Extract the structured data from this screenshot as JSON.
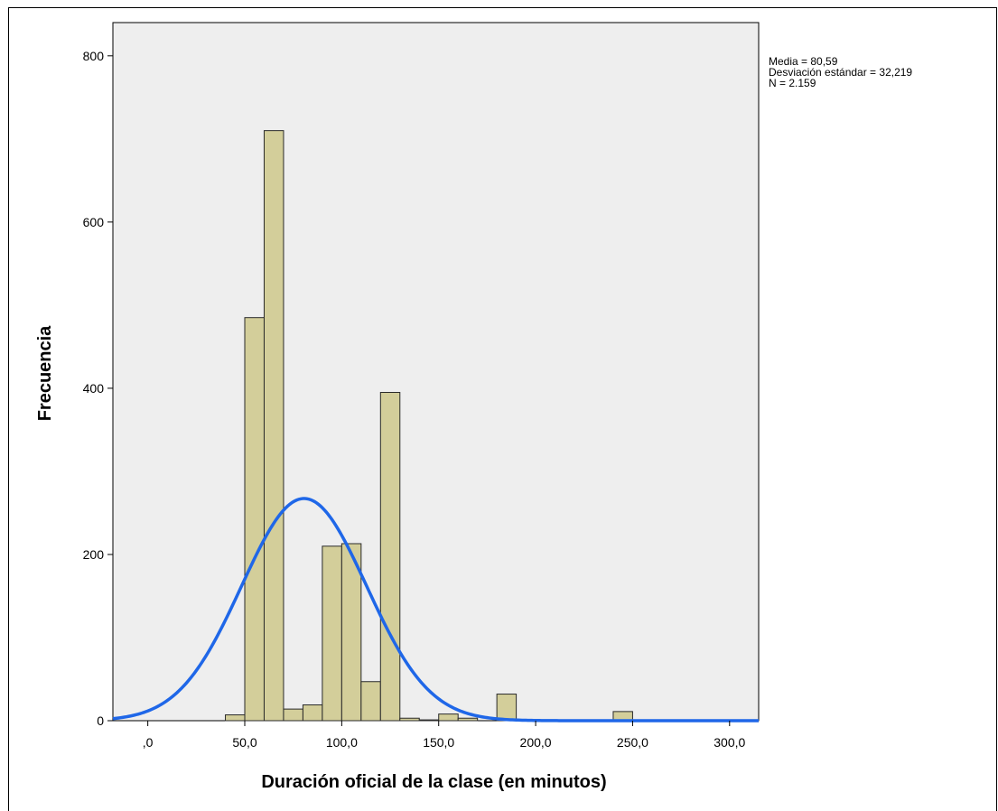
{
  "legend_stats": {
    "mean": "Media = 80,59",
    "std": "Desviación estándar = 32,219",
    "n": "N = 2.159"
  },
  "colors": {
    "plot_background": "#eeeeee",
    "bar_fill": "#d3ce9a",
    "bar_stroke": "#2a2a2a",
    "curve": "#1f67e8"
  },
  "chart_data": {
    "type": "bar",
    "xlabel": "Duración oficial de la clase (en minutos)",
    "ylabel": "Frecuencia",
    "xlim": [
      -18,
      315
    ],
    "ylim": [
      0,
      840
    ],
    "x_ticks": [
      0,
      50,
      100,
      150,
      200,
      250,
      300
    ],
    "x_tick_labels": [
      ",0",
      "50,0",
      "100,0",
      "150,0",
      "200,0",
      "250,0",
      "300,0"
    ],
    "y_ticks": [
      0,
      200,
      400,
      600,
      800
    ],
    "y_tick_labels": [
      "0",
      "200",
      "400",
      "600",
      "800"
    ],
    "bin_width": 10,
    "bins": [
      {
        "x0": 40,
        "x1": 50,
        "value": 7
      },
      {
        "x0": 50,
        "x1": 60,
        "value": 485
      },
      {
        "x0": 60,
        "x1": 70,
        "value": 710
      },
      {
        "x0": 70,
        "x1": 80,
        "value": 14
      },
      {
        "x0": 80,
        "x1": 90,
        "value": 19
      },
      {
        "x0": 90,
        "x1": 100,
        "value": 210
      },
      {
        "x0": 100,
        "x1": 110,
        "value": 213
      },
      {
        "x0": 110,
        "x1": 120,
        "value": 47
      },
      {
        "x0": 120,
        "x1": 130,
        "value": 395
      },
      {
        "x0": 130,
        "x1": 140,
        "value": 3
      },
      {
        "x0": 140,
        "x1": 150,
        "value": 1
      },
      {
        "x0": 150,
        "x1": 160,
        "value": 8
      },
      {
        "x0": 160,
        "x1": 170,
        "value": 3
      },
      {
        "x0": 180,
        "x1": 190,
        "value": 32
      },
      {
        "x0": 210,
        "x1": 220,
        "value": 1
      },
      {
        "x0": 240,
        "x1": 250,
        "value": 11
      }
    ],
    "normal_curve": {
      "mean": 80.59,
      "std": 32.219,
      "n": 2159
    },
    "grid": false
  }
}
